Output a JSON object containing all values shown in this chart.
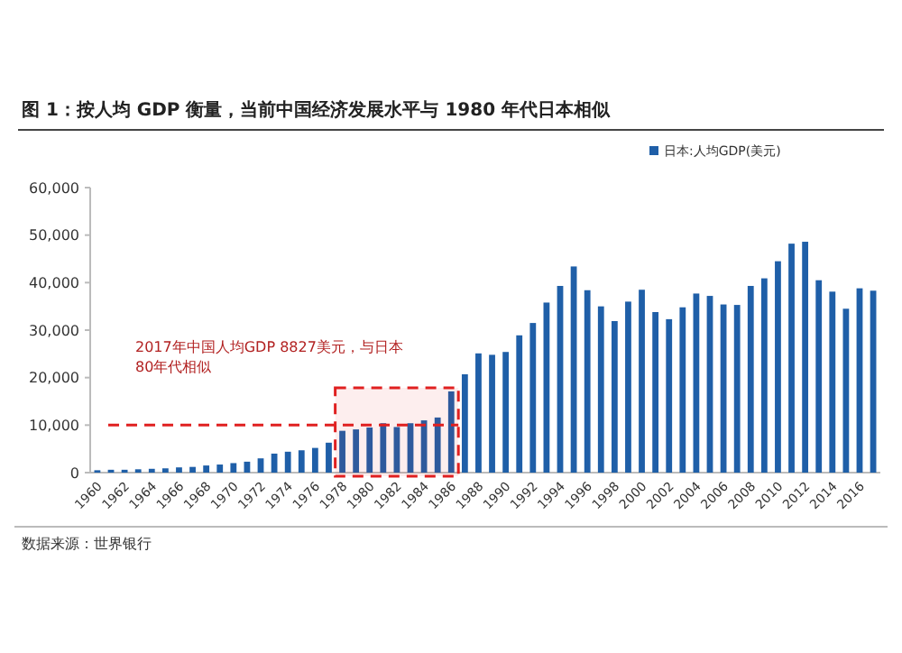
{
  "chart_data": {
    "type": "bar",
    "title": "图 1：按人均 GDP 衡量，当前中国经济发展水平与 1980 年代日本相似",
    "categories": [
      "1960",
      null,
      "1962",
      null,
      "1964",
      null,
      "1966",
      null,
      "1968",
      null,
      "1970",
      null,
      "1972",
      null,
      "1974",
      null,
      "1976",
      null,
      "1978",
      null,
      "1980",
      null,
      "1982",
      null,
      "1984",
      null,
      "1986",
      null,
      "1988",
      null,
      "1990",
      null,
      "1992",
      null,
      "1994",
      null,
      "1996",
      null,
      "1998",
      null,
      "2000",
      null,
      "2002",
      null,
      "2004",
      null,
      "2006",
      null,
      "2008",
      null,
      "2010",
      null,
      "2012",
      null,
      "2014",
      null,
      "2016",
      null
    ],
    "series": [
      {
        "name": "日本:人均GDP(美元)",
        "color": "#1f5fa8",
        "values": [
          500,
          600,
          600,
          700,
          800,
          900,
          1100,
          1200,
          1500,
          1700,
          2000,
          2300,
          3000,
          4000,
          4400,
          4700,
          5200,
          6300,
          8800,
          9100,
          9500,
          10400,
          9600,
          10400,
          11000,
          11600,
          17100,
          20700,
          25100,
          24800,
          25400,
          28900,
          31500,
          35800,
          39300,
          43400,
          38400,
          35000,
          31900,
          36000,
          38500,
          33800,
          32300,
          34800,
          37700,
          37200,
          35400,
          35300,
          39300,
          40900,
          44500,
          48200,
          48600,
          40500,
          38100,
          34500,
          38800,
          38300
        ]
      }
    ],
    "ylim": [
      0,
      60000
    ],
    "yticks": [
      {
        "value": 0,
        "label": "0"
      },
      {
        "value": 10000,
        "label": "10,000"
      },
      {
        "value": 20000,
        "label": "20,000"
      },
      {
        "value": 30000,
        "label": "30,000"
      },
      {
        "value": 40000,
        "label": "40,000"
      },
      {
        "value": 50000,
        "label": "50,000"
      },
      {
        "value": 60000,
        "label": "60,000"
      }
    ],
    "ref_lines": [
      {
        "axis": "y",
        "value": 10000,
        "color": "#e02020",
        "line_style": "dashed"
      }
    ],
    "bands": [
      {
        "axis": "x",
        "from": "1978",
        "to": "1986",
        "color": "#e02020"
      }
    ],
    "legend": "top right",
    "annotations": [
      "2017年中国人均GDP 8827美元，与日本\n80年代相似",
      "数据来源：世界银行"
    ]
  }
}
